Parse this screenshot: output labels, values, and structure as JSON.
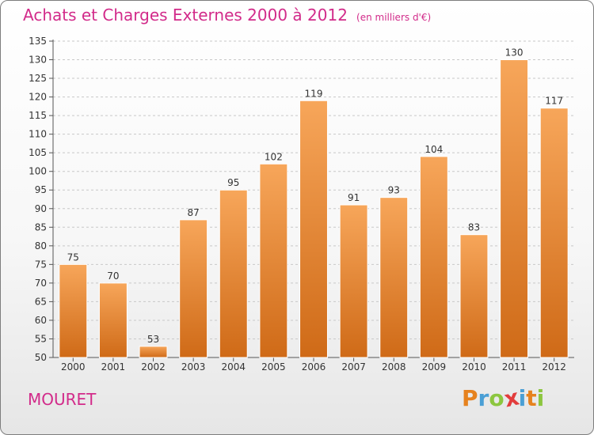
{
  "title": {
    "main": "Achats et Charges Externes 2000 à 2012",
    "unit": "(en milliers d'€)"
  },
  "commune": "MOURET",
  "logo": {
    "letters": [
      "P",
      "r",
      "o",
      "x",
      "i",
      "t",
      "i"
    ],
    "colors": [
      "#e6821e",
      "#4a9fd5",
      "#8cc63f",
      "#e23c3c",
      "#4a9fd5",
      "#e6821e",
      "#8cc63f"
    ]
  },
  "colors": {
    "bar_top": "#f7a65a",
    "bar_bottom": "#cf6a17",
    "bar_stroke": "#ffffff",
    "accent": "#d22b8a"
  },
  "chart_data": {
    "type": "bar",
    "title": "Achats et Charges Externes 2000 à 2012",
    "subtitle": "(en milliers d'€)",
    "categories": [
      "2000",
      "2001",
      "2002",
      "2003",
      "2004",
      "2005",
      "2006",
      "2007",
      "2008",
      "2009",
      "2010",
      "2011",
      "2012"
    ],
    "values": [
      75,
      70,
      53,
      87,
      95,
      102,
      119,
      91,
      93,
      104,
      83,
      130,
      117
    ],
    "ylim": [
      50,
      135
    ],
    "yticks": [
      50,
      55,
      60,
      65,
      70,
      75,
      80,
      85,
      90,
      95,
      100,
      105,
      110,
      115,
      120,
      125,
      130,
      135
    ],
    "grid": true,
    "xlabel": "",
    "ylabel": ""
  }
}
